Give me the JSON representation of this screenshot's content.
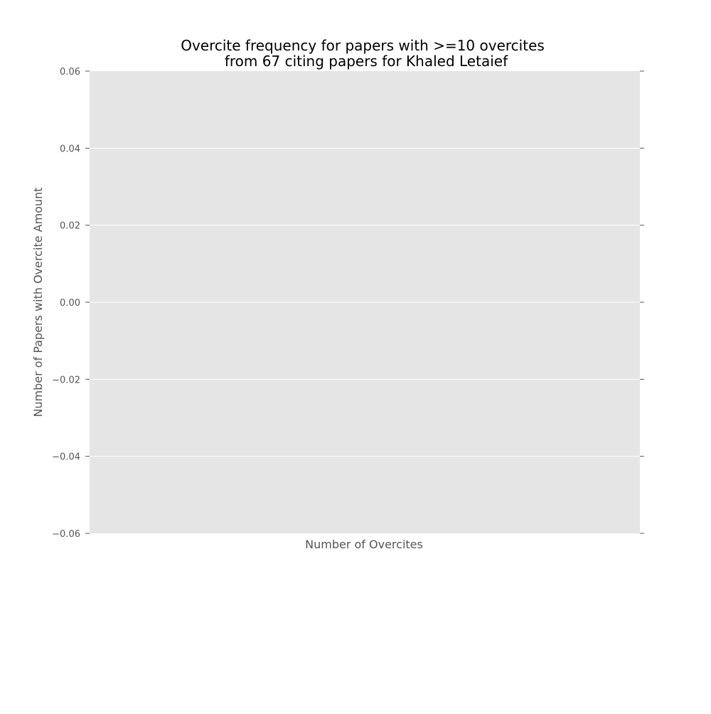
{
  "chart_data": {
    "type": "bar",
    "title": [
      "Overcite frequency for papers with >=10 overcites",
      "from 67 citing papers for Khaled Letaief"
    ],
    "xlabel": "Number of Overcites",
    "ylabel": "Number of Papers with Overcite Amount",
    "categories": [],
    "values": [],
    "ylim": [
      -0.06,
      0.06
    ],
    "yticks": [
      0.06,
      0.04,
      0.02,
      0.0,
      -0.02,
      -0.04,
      -0.06
    ],
    "ytick_labels": [
      "0.06",
      "0.04",
      "0.02",
      "0.00",
      "−0.02",
      "−0.04",
      "−0.06"
    ],
    "xticks": [],
    "grid": true,
    "legend": "none",
    "colors": {
      "plot_background": "#e5e5e5",
      "grid": "#ffffff",
      "text": "#555555",
      "title": "#000000",
      "tick": "#555555"
    }
  }
}
